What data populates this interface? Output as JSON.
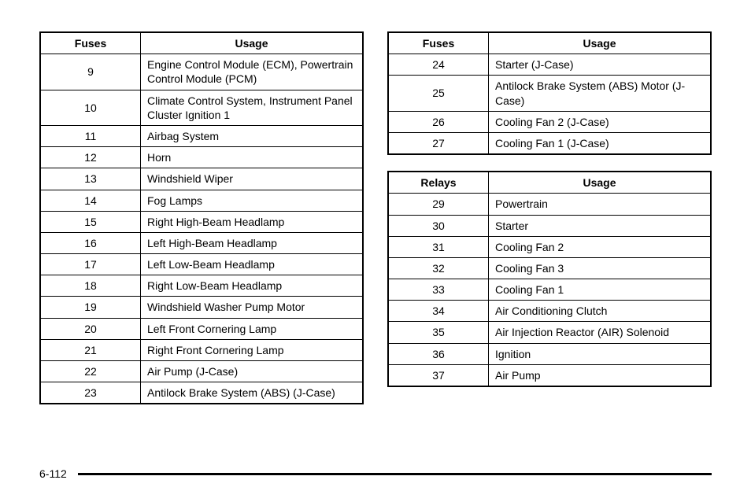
{
  "page_number": "6-112",
  "text_color": "#000000",
  "border_color": "#000000",
  "background_color": "#ffffff",
  "font_family": "Arial, Helvetica, sans-serif",
  "header_fontsize": 14,
  "cell_fontsize": 14,
  "tables": {
    "left_fuses": {
      "columns": [
        "Fuses",
        "Usage"
      ],
      "rows": [
        [
          "9",
          "Engine Control Module (ECM), Powertrain Control Module (PCM)"
        ],
        [
          "10",
          "Climate Control System, Instrument Panel Cluster Ignition 1"
        ],
        [
          "11",
          "Airbag System"
        ],
        [
          "12",
          "Horn"
        ],
        [
          "13",
          "Windshield Wiper"
        ],
        [
          "14",
          "Fog Lamps"
        ],
        [
          "15",
          "Right High-Beam Headlamp"
        ],
        [
          "16",
          "Left High-Beam Headlamp"
        ],
        [
          "17",
          "Left Low-Beam Headlamp"
        ],
        [
          "18",
          "Right Low-Beam Headlamp"
        ],
        [
          "19",
          "Windshield Washer Pump Motor"
        ],
        [
          "20",
          "Left Front Cornering Lamp"
        ],
        [
          "21",
          "Right Front Cornering Lamp"
        ],
        [
          "22",
          "Air Pump (J-Case)"
        ],
        [
          "23",
          "Antilock Brake System (ABS) (J-Case)"
        ]
      ]
    },
    "right_fuses": {
      "columns": [
        "Fuses",
        "Usage"
      ],
      "rows": [
        [
          "24",
          "Starter (J-Case)"
        ],
        [
          "25",
          "Antilock Brake System (ABS) Motor (J-Case)"
        ],
        [
          "26",
          "Cooling Fan 2 (J-Case)"
        ],
        [
          "27",
          "Cooling Fan 1 (J-Case)"
        ]
      ]
    },
    "relays": {
      "columns": [
        "Relays",
        "Usage"
      ],
      "rows": [
        [
          "29",
          "Powertrain"
        ],
        [
          "30",
          "Starter"
        ],
        [
          "31",
          "Cooling Fan 2"
        ],
        [
          "32",
          "Cooling Fan 3"
        ],
        [
          "33",
          "Cooling Fan 1"
        ],
        [
          "34",
          "Air Conditioning Clutch"
        ],
        [
          "35",
          "Air Injection Reactor (AIR) Solenoid"
        ],
        [
          "36",
          "Ignition"
        ],
        [
          "37",
          "Air Pump"
        ]
      ]
    }
  }
}
